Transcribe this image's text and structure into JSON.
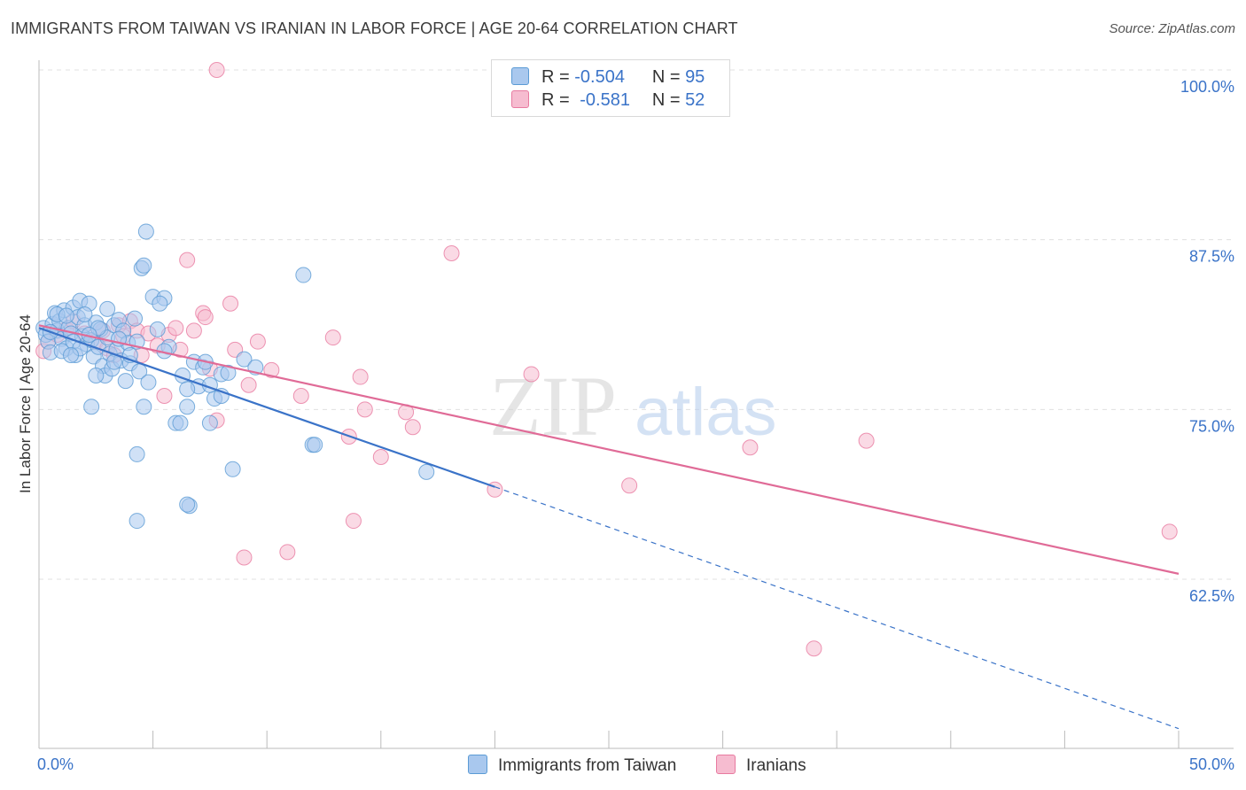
{
  "title": "IMMIGRANTS FROM TAIWAN VS IRANIAN IN LABOR FORCE | AGE 20-64 CORRELATION CHART",
  "source": "Source: ZipAtlas.com",
  "colors": {
    "taiwan": "#5b9bd5",
    "taiwan_fill": "#a9c8ee",
    "taiwan_line": "#3a73c8",
    "iranian": "#e87aa0",
    "iranian_fill": "#f6bcd0",
    "iranian_line": "#e06b97",
    "axis_text": "#3a73c8",
    "grid": "#e0e0e0"
  },
  "legend": {
    "taiwan": {
      "r_label": "R =",
      "r_value": "-0.504",
      "n_label": "N =",
      "n_value": "95"
    },
    "iranian": {
      "r_label": "R =",
      "r_value": "-0.581",
      "n_label": "N =",
      "n_value": "52"
    }
  },
  "chart_data": {
    "type": "scatter",
    "title": "IMMIGRANTS FROM TAIWAN VS IRANIAN IN LABOR FORCE | AGE 20-64 CORRELATION CHART",
    "xlabel": "",
    "ylabel": "In Labor Force | Age 20-64",
    "xlim": [
      0,
      50
    ],
    "ylim": [
      50,
      101.5
    ],
    "x_tick_labels": [
      "0.0%",
      "50.0%"
    ],
    "y_ticks": [
      100.0,
      87.5,
      75.0,
      62.5
    ],
    "y_tick_labels": [
      "100.0%",
      "87.5%",
      "75.0%",
      "62.5%"
    ],
    "watermark": {
      "zip": "ZIP",
      "atlas": "atlas"
    },
    "series": [
      {
        "name": "Immigrants from Taiwan",
        "R": -0.504,
        "N": 95,
        "trend": {
          "x0": 0,
          "y0": 81.0,
          "x_solid_end": 20,
          "y_solid_end": 69.3,
          "x1": 50,
          "y1": 51.5
        },
        "points": [
          [
            0.2,
            81.0
          ],
          [
            0.3,
            80.5
          ],
          [
            0.4,
            80.0
          ],
          [
            0.5,
            79.2
          ],
          [
            0.6,
            81.3
          ],
          [
            0.7,
            82.1
          ],
          [
            0.8,
            80.8
          ],
          [
            0.9,
            81.5
          ],
          [
            1.0,
            80.2
          ],
          [
            1.1,
            82.3
          ],
          [
            1.2,
            79.5
          ],
          [
            1.3,
            81.0
          ],
          [
            1.4,
            80.6
          ],
          [
            1.5,
            82.5
          ],
          [
            1.6,
            79.0
          ],
          [
            1.7,
            81.8
          ],
          [
            1.8,
            83.0
          ],
          [
            1.9,
            80.4
          ],
          [
            2.0,
            81.2
          ],
          [
            2.1,
            79.8
          ],
          [
            2.2,
            82.8
          ],
          [
            2.3,
            80.1
          ],
          [
            2.4,
            78.9
          ],
          [
            2.5,
            81.4
          ],
          [
            2.6,
            79.6
          ],
          [
            2.7,
            80.9
          ],
          [
            2.8,
            78.2
          ],
          [
            2.9,
            77.5
          ],
          [
            3.0,
            80.3
          ],
          [
            3.1,
            79.1
          ],
          [
            3.2,
            78.0
          ],
          [
            3.3,
            81.2
          ],
          [
            3.4,
            79.4
          ],
          [
            3.5,
            81.6
          ],
          [
            3.6,
            78.6
          ],
          [
            3.7,
            80.8
          ],
          [
            3.8,
            77.1
          ],
          [
            3.9,
            79.9
          ],
          [
            4.0,
            78.4
          ],
          [
            4.2,
            81.7
          ],
          [
            4.4,
            77.8
          ],
          [
            4.6,
            75.2
          ],
          [
            4.8,
            77.0
          ],
          [
            5.0,
            83.3
          ],
          [
            5.2,
            80.9
          ],
          [
            5.5,
            83.2
          ],
          [
            5.7,
            79.6
          ],
          [
            6.0,
            74.0
          ],
          [
            6.3,
            77.5
          ],
          [
            6.5,
            75.2
          ],
          [
            6.8,
            78.5
          ],
          [
            7.0,
            76.7
          ],
          [
            7.2,
            78.1
          ],
          [
            7.5,
            74.0
          ],
          [
            7.7,
            75.8
          ],
          [
            8.0,
            77.6
          ],
          [
            8.3,
            77.7
          ],
          [
            8.5,
            70.6
          ],
          [
            9.0,
            78.7
          ],
          [
            9.5,
            78.1
          ],
          [
            11.6,
            84.9
          ],
          [
            12.0,
            72.4
          ],
          [
            17.0,
            70.4
          ],
          [
            4.5,
            85.4
          ],
          [
            4.6,
            85.6
          ],
          [
            4.7,
            88.1
          ],
          [
            5.3,
            82.8
          ],
          [
            2.5,
            77.5
          ],
          [
            1.0,
            79.3
          ],
          [
            0.5,
            80.7
          ],
          [
            1.5,
            80.0
          ],
          [
            2.0,
            82.0
          ],
          [
            3.0,
            82.4
          ],
          [
            3.5,
            80.2
          ],
          [
            4.0,
            79.0
          ],
          [
            1.8,
            79.5
          ],
          [
            2.6,
            81.0
          ],
          [
            3.3,
            78.5
          ],
          [
            4.3,
            80.0
          ],
          [
            0.8,
            82.0
          ],
          [
            1.2,
            81.9
          ],
          [
            2.2,
            80.5
          ],
          [
            5.5,
            79.3
          ],
          [
            6.2,
            74.0
          ],
          [
            6.5,
            76.5
          ],
          [
            7.5,
            76.8
          ],
          [
            8.0,
            76.0
          ],
          [
            6.6,
            67.9
          ],
          [
            6.5,
            68.0
          ],
          [
            4.3,
            66.8
          ],
          [
            4.3,
            71.7
          ],
          [
            2.3,
            75.2
          ],
          [
            1.4,
            79.0
          ],
          [
            12.1,
            72.4
          ],
          [
            7.3,
            78.5
          ]
        ]
      },
      {
        "name": "Iranians",
        "R": -0.581,
        "N": 52,
        "trend": {
          "x0": 0,
          "y0": 81.2,
          "x1": 50,
          "y1": 62.9
        },
        "points": [
          [
            0.2,
            79.3
          ],
          [
            0.4,
            80.0
          ],
          [
            0.8,
            80.5
          ],
          [
            1.2,
            80.9
          ],
          [
            1.5,
            81.5
          ],
          [
            2.0,
            80.6
          ],
          [
            2.5,
            80.0
          ],
          [
            2.8,
            80.8
          ],
          [
            3.0,
            79.5
          ],
          [
            3.3,
            79.0
          ],
          [
            3.5,
            81.2
          ],
          [
            3.7,
            80.4
          ],
          [
            4.0,
            81.5
          ],
          [
            4.3,
            80.8
          ],
          [
            4.5,
            79.0
          ],
          [
            4.8,
            80.6
          ],
          [
            5.2,
            79.7
          ],
          [
            5.5,
            76.0
          ],
          [
            5.7,
            80.5
          ],
          [
            6.0,
            81.0
          ],
          [
            6.2,
            79.4
          ],
          [
            6.5,
            86.0
          ],
          [
            6.8,
            80.8
          ],
          [
            7.2,
            82.1
          ],
          [
            7.3,
            81.8
          ],
          [
            7.5,
            78.0
          ],
          [
            7.8,
            74.2
          ],
          [
            8.4,
            82.8
          ],
          [
            8.6,
            79.4
          ],
          [
            9.2,
            76.8
          ],
          [
            9.6,
            80.0
          ],
          [
            10.2,
            77.9
          ],
          [
            10.9,
            64.5
          ],
          [
            11.5,
            76.0
          ],
          [
            12.9,
            80.3
          ],
          [
            13.6,
            73.0
          ],
          [
            13.8,
            66.8
          ],
          [
            14.1,
            77.4
          ],
          [
            14.3,
            75.0
          ],
          [
            15.0,
            71.5
          ],
          [
            16.1,
            74.8
          ],
          [
            16.4,
            73.7
          ],
          [
            18.1,
            86.5
          ],
          [
            20.0,
            69.1
          ],
          [
            21.6,
            77.6
          ],
          [
            25.9,
            69.4
          ],
          [
            31.2,
            72.2
          ],
          [
            34.0,
            57.4
          ],
          [
            36.3,
            72.7
          ],
          [
            49.6,
            66.0
          ],
          [
            7.8,
            100.0
          ],
          [
            9.0,
            64.1
          ]
        ]
      }
    ]
  },
  "bottom_legend": {
    "taiwan_label": "Immigrants from Taiwan",
    "iranian_label": "Iranians"
  }
}
